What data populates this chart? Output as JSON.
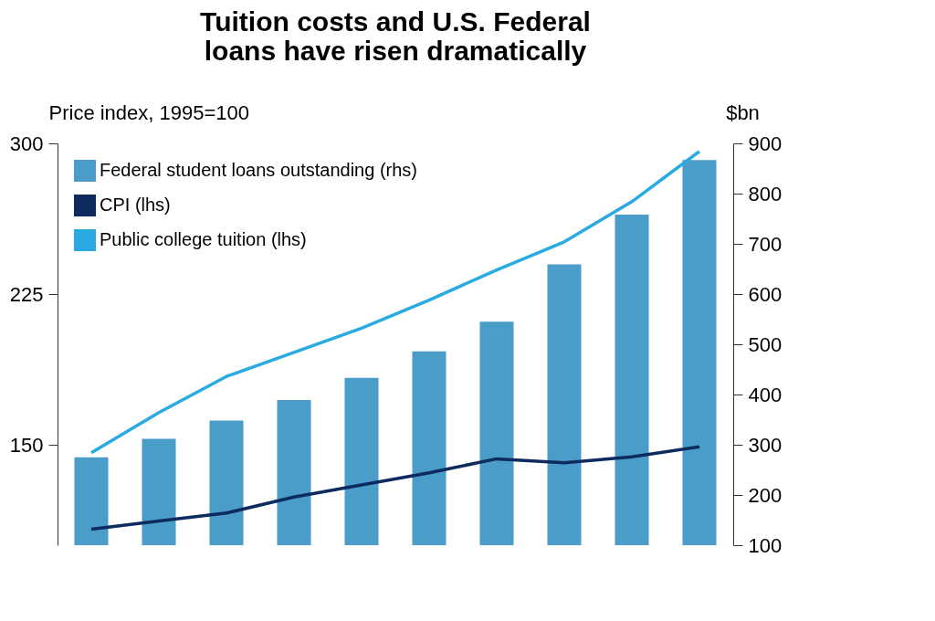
{
  "chart_data": {
    "type": "bar",
    "title": "Tuition costs and U.S. Federal loans have risen dramatically",
    "ylabel": "Price index, 1995=100",
    "y2label": "$bn",
    "categories": [
      null,
      null,
      null,
      null,
      null,
      null,
      null,
      null,
      null,
      null
    ],
    "series": [
      {
        "name": "Federal student loans outstanding (rhs)",
        "axis": "y2",
        "color": "#4a9cc9",
        "values": [
          275,
          312,
          348,
          389,
          433,
          486,
          545,
          659,
          758,
          867
        ]
      },
      {
        "name": "CPI (lhs)",
        "type": "line",
        "color": "#0d2b5e",
        "values": [
          108,
          112,
          116,
          124,
          130,
          136,
          143,
          141,
          144,
          149
        ]
      },
      {
        "name": "Public college tuition (lhs)",
        "type": "line",
        "color": "#29abe2",
        "values": [
          146,
          166,
          184,
          196,
          208,
          222,
          237,
          251,
          271,
          296
        ]
      }
    ],
    "ylim": [
      100,
      300
    ],
    "yticks": [
      150,
      225,
      300
    ],
    "y2lim": [
      100,
      900
    ],
    "y2ticks": [
      100,
      200,
      300,
      400,
      500,
      600,
      700,
      800,
      900
    ],
    "grid": false,
    "legend": "top left",
    "marker": "none",
    "line_style": "solid"
  }
}
